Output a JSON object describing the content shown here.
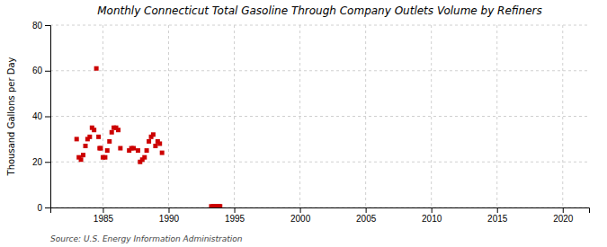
{
  "chart_data": {
    "type": "scatter",
    "title": "Monthly Connecticut Total Gasoline Through Company Outlets Volume by Refiners",
    "y_label": "Thousand Gallons per Day",
    "annotations": [
      "Source: U.S. Energy Information Administration"
    ],
    "color": "#cc0000",
    "marker": "square",
    "grid": true,
    "xlim": [
      1981,
      2022
    ],
    "ylim": [
      0,
      80
    ],
    "xticks": [
      1985,
      1990,
      1995,
      2000,
      2005,
      2010,
      2015,
      2020
    ],
    "yticks": [
      0,
      20,
      40,
      60,
      80
    ],
    "x": [
      1983.0,
      1983.17,
      1983.33,
      1983.5,
      1983.67,
      1983.83,
      1984.0,
      1984.17,
      1984.33,
      1984.5,
      1984.67,
      1984.75,
      1984.83,
      1985.0,
      1985.17,
      1985.33,
      1985.5,
      1985.67,
      1985.83,
      1986.0,
      1986.17,
      1986.33,
      1987.0,
      1987.17,
      1987.33,
      1987.67,
      1987.83,
      1988.0,
      1988.17,
      1988.33,
      1988.5,
      1988.67,
      1988.83,
      1989.0,
      1989.17,
      1989.33,
      1989.5,
      1993.25,
      1993.42,
      1993.58,
      1993.75,
      1993.83,
      1993.92
    ],
    "values": [
      30,
      22,
      21,
      23,
      27,
      30,
      31,
      35,
      34,
      61,
      31,
      26,
      26,
      22,
      22,
      25,
      29,
      33,
      35,
      35,
      34,
      26,
      25,
      26,
      26,
      25,
      20,
      21,
      22,
      25,
      29,
      31,
      32,
      27,
      29,
      28,
      24,
      0.5,
      0.5,
      0.5,
      0.5,
      0.5,
      0.5
    ]
  }
}
